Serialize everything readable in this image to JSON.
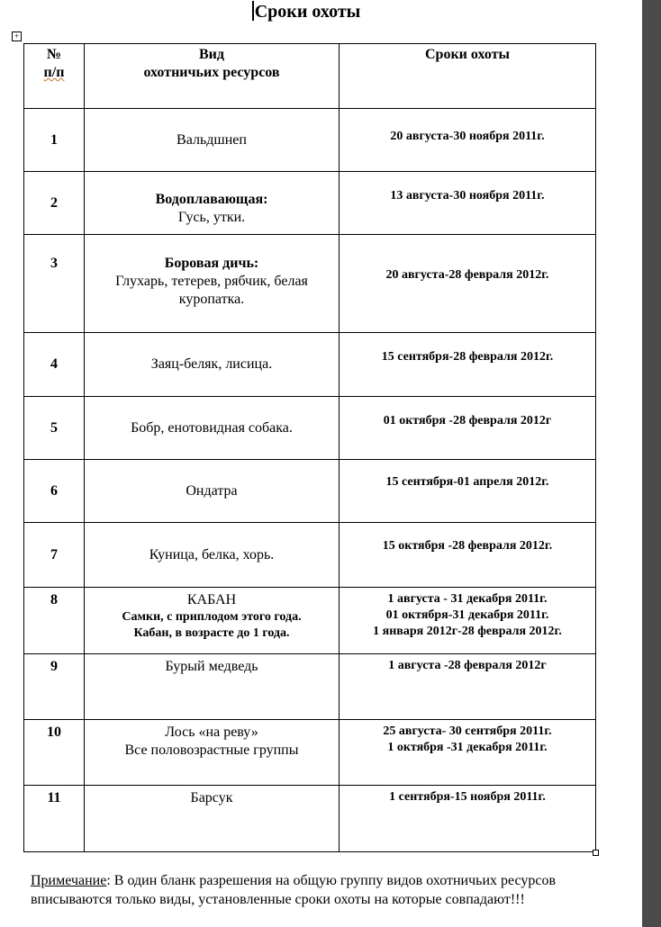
{
  "title": "Сроки охоты",
  "header": {
    "num_line1": "№",
    "num_line2": "п/п",
    "species_line1": "Вид",
    "species_line2": "охотничьих ресурсов",
    "dates": "Сроки охоты"
  },
  "rows": [
    {
      "num": "1",
      "species": "Вальдшнеп",
      "dates": [
        "20 августа-30 ноября 2011г."
      ]
    },
    {
      "num": "2",
      "species_bold": "Водоплавающая:",
      "species": "Гусь, утки.",
      "dates": [
        "13 августа-30 ноября 2011г."
      ]
    },
    {
      "num": "3",
      "species_bold": "Боровая дичь:",
      "species": "Глухарь, тетерев, рябчик, белая куропатка.",
      "dates": [
        "20 августа-28 февраля 2012г."
      ]
    },
    {
      "num": "4",
      "species": "Заяц-беляк, лисица.",
      "dates": [
        "15 сентября-28 февраля 2012г."
      ]
    },
    {
      "num": "5",
      "species": "Бобр, енотовидная собака.",
      "dates": [
        "01 октября -28 февраля 2012г"
      ]
    },
    {
      "num": "6",
      "species": "Ондатра",
      "dates": [
        "15 сентября-01 апреля 2012г."
      ]
    },
    {
      "num": "7",
      "species": "Куница, белка, хорь.",
      "dates": [
        "15 октября -28 февраля 2012г."
      ]
    },
    {
      "num": "8",
      "species": "КАБАН",
      "species_sub1": "Самки,  с приплодом этого года.",
      "species_sub2": "Кабан, в возрасте до 1 года.",
      "dates": [
        "1 августа - 31 декабря 2011г.",
        "01 октября-31 декабря 2011г.",
        "1 января 2012г-28 февраля 2012г."
      ]
    },
    {
      "num": "9",
      "species": "Бурый медведь",
      "dates": [
        "1 августа -28 февраля 2012г"
      ]
    },
    {
      "num": "10",
      "species": "Лось «на реву»",
      "species_sub1": "Все половозрастные группы",
      "dates": [
        "25 августа- 30 сентября 2011г.",
        "1 октября -31 декабря 2011г."
      ]
    },
    {
      "num": "11",
      "species": "Барсук",
      "dates": [
        "1 сентября-15 ноября 2011г."
      ]
    }
  ],
  "note": {
    "label": "Примечание",
    "text": ":  В один бланк разрешения на общую группу видов охотничьих ресурсов  вписываются только виды, установленные сроки охоты на которые совпадают!!!"
  }
}
